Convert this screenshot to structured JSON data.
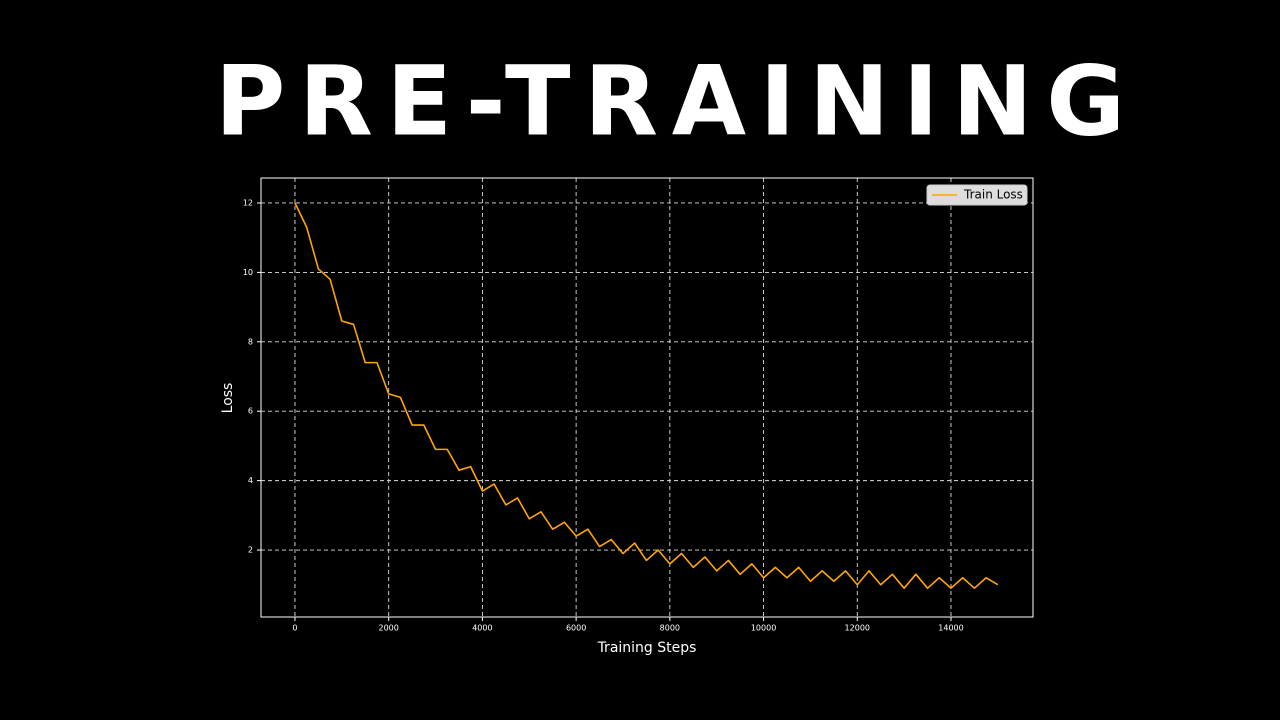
{
  "chart_data": {
    "type": "line",
    "title": "PRE-TRAINING",
    "x_label": "Training Steps",
    "y_label": "Loss",
    "legend_position": "upper right",
    "grid": true,
    "xlim": [
      -725,
      15750
    ],
    "ylim": [
      0.07,
      12.72
    ],
    "xticks": [
      0,
      2000,
      4000,
      6000,
      8000,
      10000,
      12000,
      14000
    ],
    "yticks": [
      2,
      4,
      6,
      8,
      10,
      12
    ],
    "series": [
      {
        "name": "Train Loss",
        "color": "#ffa500",
        "x": [
          0,
          250,
          500,
          750,
          1000,
          1250,
          1500,
          1750,
          2000,
          2250,
          2500,
          2750,
          3000,
          3250,
          3500,
          3750,
          4000,
          4250,
          4500,
          4750,
          5000,
          5250,
          5500,
          5750,
          6000,
          6250,
          6500,
          6750,
          7000,
          7250,
          7500,
          7750,
          8000,
          8250,
          8500,
          8750,
          9000,
          9250,
          9500,
          9750,
          10000,
          10250,
          10500,
          10750,
          11000,
          11250,
          11500,
          11750,
          12000,
          12250,
          12500,
          12750,
          13000,
          13250,
          13500,
          13750,
          14000,
          14250,
          14500,
          14750,
          15000
        ],
        "values": [
          12.0,
          11.3,
          10.1,
          9.8,
          8.6,
          8.5,
          7.4,
          7.4,
          6.5,
          6.4,
          5.6,
          5.6,
          4.9,
          4.9,
          4.3,
          4.4,
          3.7,
          3.9,
          3.3,
          3.5,
          2.9,
          3.1,
          2.6,
          2.8,
          2.4,
          2.6,
          2.1,
          2.3,
          1.9,
          2.2,
          1.7,
          2.0,
          1.6,
          1.9,
          1.5,
          1.8,
          1.4,
          1.7,
          1.3,
          1.6,
          1.2,
          1.5,
          1.2,
          1.5,
          1.1,
          1.4,
          1.1,
          1.4,
          1.0,
          1.4,
          1.0,
          1.3,
          0.9,
          1.3,
          0.9,
          1.2,
          0.9,
          1.2,
          0.9,
          1.2,
          1.0
        ]
      }
    ]
  }
}
